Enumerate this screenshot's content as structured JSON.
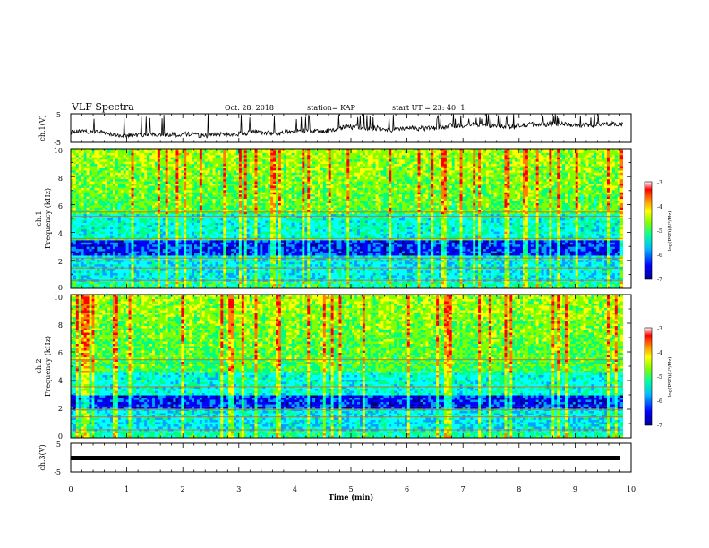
{
  "header": {
    "title": "VLF Spectra",
    "date": "Oct. 28, 2018",
    "station": "station= KAP",
    "start": "start  UT  =   23: 40: 1"
  },
  "chart_data": [
    {
      "type": "line",
      "panel": "ch1-waveform",
      "ylabel": "ch.1(V)",
      "ylim": [
        -5,
        5
      ],
      "yticks": [
        "5",
        "-5"
      ],
      "xlim": [
        0,
        10
      ],
      "line_color": "#000000"
    },
    {
      "type": "heatmap",
      "panel": "ch1-spectrogram",
      "ylabel": "ch.1",
      "ylabel2": "Frequency  (kHz)",
      "ylim": [
        0,
        10
      ],
      "yticks": [
        "0",
        "2",
        "4",
        "6",
        "8",
        "10"
      ],
      "xlim": [
        0,
        9.85
      ],
      "dark_band_kHz": [
        2.4,
        3.4
      ],
      "pale_band_kHz": [
        3.6,
        5.3
      ],
      "colorbar": {
        "label": "log(PSD)(V²/Hz)",
        "range": [
          -7,
          -3
        ],
        "ticks": [
          "-3",
          "-4",
          "-5",
          "-6",
          "-7"
        ]
      }
    },
    {
      "type": "heatmap",
      "panel": "ch2-spectrogram",
      "ylabel": "ch.2",
      "ylabel2": "Frequency  (kHz)",
      "ylim": [
        0,
        10
      ],
      "yticks": [
        "0",
        "2",
        "4",
        "6",
        "8",
        "10"
      ],
      "xlim": [
        0,
        9.85
      ],
      "dark_band_kHz": [
        2.0,
        3.0
      ],
      "pale_band_kHz": [
        3.0,
        4.5
      ],
      "colorbar": {
        "label": "log(PSD)(V²/Hz)",
        "range": [
          -7,
          -3
        ],
        "ticks": [
          "-3",
          "-4",
          "-5",
          "-6",
          "-7"
        ]
      }
    },
    {
      "type": "line",
      "panel": "ch3-waveform",
      "ylabel": "ch.3(V)",
      "ylim": [
        -5,
        5
      ],
      "yticks": [
        "5",
        "-5"
      ],
      "xlim": [
        0,
        10
      ],
      "y": [
        -1.5,
        -1.5
      ],
      "x": [
        0,
        10
      ],
      "line_color": "#000000"
    }
  ],
  "xaxis": {
    "label": "Time  (min)",
    "range": [
      0,
      10
    ],
    "ticks": [
      "0",
      "1",
      "2",
      "3",
      "4",
      "5",
      "6",
      "7",
      "8",
      "9",
      "10"
    ]
  },
  "colorscale": [
    "#00008f",
    "#0000ff",
    "#00a0ff",
    "#00ffff",
    "#00ff80",
    "#80ff00",
    "#ffff00",
    "#ff8000",
    "#ff0000",
    "#ffffff"
  ]
}
